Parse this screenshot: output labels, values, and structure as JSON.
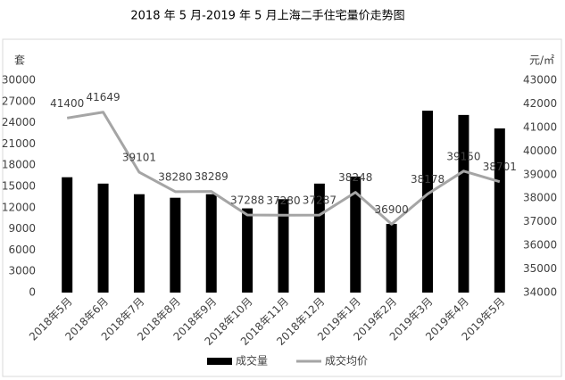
{
  "chart_data": {
    "type": "bar_line",
    "title": "2018 年 5 月-2019 年 5 月上海二手住宅量价走势图",
    "y_label": "套",
    "y2_label": "元/㎡",
    "categories": [
      "2018年5月",
      "2018年6月",
      "2018年7月",
      "2018年8月",
      "2018年9月",
      "2018年10月",
      "2018年11月",
      "2018年12月",
      "2019年1月",
      "2019年2月",
      "2019年3月",
      "2019年4月",
      "2019年5月"
    ],
    "series": [
      {
        "name": "成交量",
        "type": "bar",
        "color": "#000000",
        "values": [
          16300,
          15400,
          13900,
          13400,
          13900,
          11900,
          13200,
          15400,
          16400,
          9700,
          25700,
          25100,
          23200
        ]
      },
      {
        "name": "成交均价",
        "type": "line",
        "axis": "y2",
        "color": "#a5a5a5",
        "values": [
          41400,
          41649,
          39101,
          38280,
          38289,
          37288,
          37280,
          37287,
          38248,
          36900,
          38178,
          39150,
          38701
        ]
      }
    ],
    "ylim": [
      0,
      30000
    ],
    "yticks": [
      0,
      3000,
      6000,
      9000,
      12000,
      15000,
      18000,
      21000,
      24000,
      27000,
      30000
    ],
    "y2lim": [
      34000,
      43000
    ],
    "y2ticks": [
      34000,
      35000,
      36000,
      37000,
      38000,
      39000,
      40000,
      41000,
      42000,
      43000
    ],
    "legend": "bottom"
  }
}
